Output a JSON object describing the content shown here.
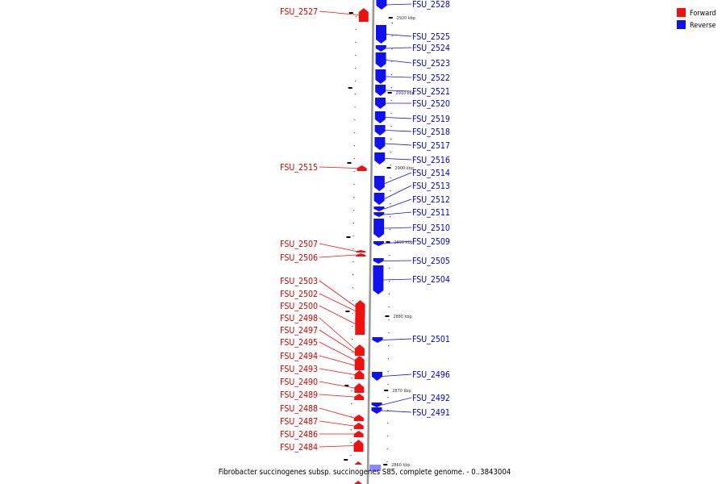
{
  "caption": "Fibrobacter succinogenes subsp. succinogenes S85, complete genome. - 0..3843004",
  "legend": [
    {
      "label": "Forward",
      "color": "#ee1111"
    },
    {
      "label": "Reverse",
      "color": "#1111ee"
    }
  ],
  "colors": {
    "forward": "#ee1111",
    "forward_label": "#cc0000",
    "reverse": "#1111ee",
    "reverse_label": "#0000cc",
    "backbone": "#999999"
  },
  "scale_labels": [
    "2920 kbp",
    "2910 kbp",
    "2900 kbp",
    "2890 kbp",
    "2880 kbp",
    "2870 kbp",
    "2860 kbp"
  ],
  "forward_genes": [
    "FSU_2527",
    "FSU_2515",
    "FSU_2507",
    "FSU_2506",
    "FSU_2503",
    "FSU_2502",
    "FSU_2500",
    "FSU_2498",
    "FSU_2497",
    "FSU_2495",
    "FSU_2494",
    "FSU_2493",
    "FSU_2490",
    "FSU_2489",
    "FSU_2488",
    "FSU_2487",
    "FSU_2486",
    "FSU_2484"
  ],
  "reverse_genes": [
    "FSU_2528",
    "FSU_2525",
    "FSU_2524",
    "FSU_2523",
    "FSU_2522",
    "FSU_2521",
    "FSU_2520",
    "FSU_2519",
    "FSU_2518",
    "FSU_2517",
    "FSU_2516",
    "FSU_2514",
    "FSU_2513",
    "FSU_2512",
    "FSU_2511",
    "FSU_2510",
    "FSU_2509",
    "FSU_2505",
    "FSU_2504",
    "FSU_2501",
    "FSU_2496",
    "FSU_2492",
    "FSU_2491"
  ]
}
